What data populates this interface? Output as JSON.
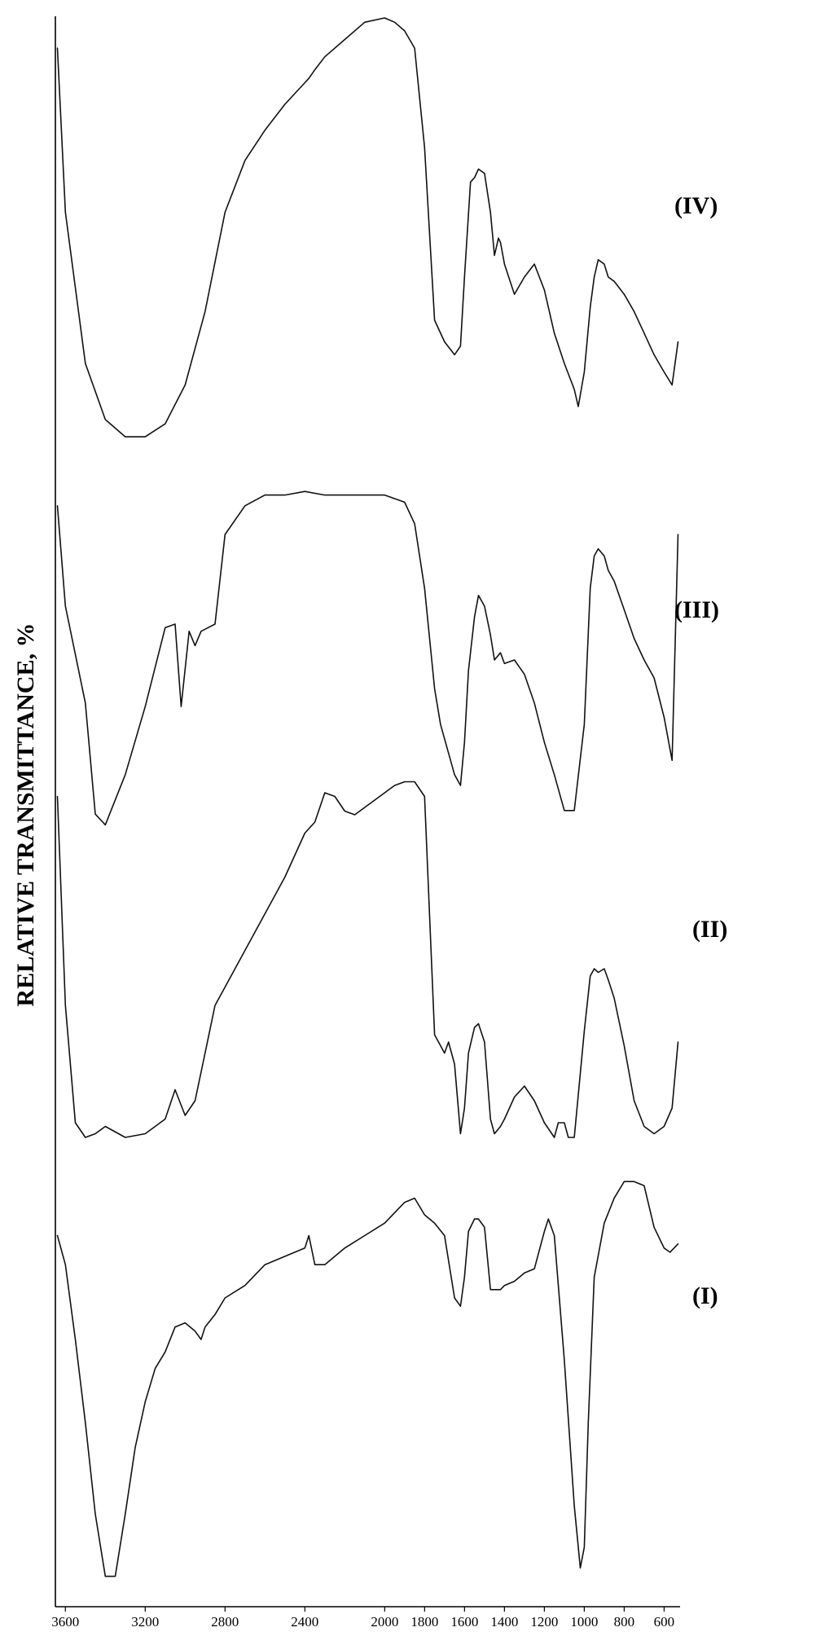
{
  "chart_data": {
    "type": "line",
    "title": "",
    "xlabel": "",
    "ylabel": "RELATIVE TRANSMITTANCE, %",
    "x_reversed": true,
    "xlim": [
      3650,
      520
    ],
    "x_ticks": [
      3600,
      3200,
      2800,
      2400,
      2000,
      1800,
      1600,
      1400,
      1200,
      1000,
      800,
      600
    ],
    "y_units": "relative transmittance (arbitrary, offset per series)",
    "legend": "inline labels at right",
    "grid": false,
    "series": [
      {
        "name": "(IV)",
        "x": [
          3640,
          3600,
          3500,
          3400,
          3300,
          3200,
          3100,
          3000,
          2900,
          2800,
          2700,
          2600,
          2500,
          2400,
          2380,
          2350,
          2300,
          2200,
          2100,
          2000,
          1950,
          1900,
          1850,
          1800,
          1750,
          1700,
          1650,
          1620,
          1600,
          1570,
          1550,
          1530,
          1500,
          1470,
          1450,
          1430,
          1420,
          1400,
          1350,
          1300,
          1250,
          1200,
          1150,
          1100,
          1050,
          1030,
          1000,
          970,
          950,
          930,
          900,
          880,
          850,
          800,
          750,
          700,
          650,
          600,
          560,
          530
        ],
        "y": [
          0.93,
          0.55,
          0.2,
          0.07,
          0.03,
          0.03,
          0.06,
          0.15,
          0.32,
          0.55,
          0.67,
          0.74,
          0.8,
          0.85,
          0.86,
          0.88,
          0.91,
          0.95,
          0.99,
          1.0,
          0.99,
          0.97,
          0.93,
          0.7,
          0.3,
          0.25,
          0.22,
          0.24,
          0.4,
          0.62,
          0.63,
          0.65,
          0.64,
          0.55,
          0.45,
          0.49,
          0.48,
          0.43,
          0.36,
          0.4,
          0.43,
          0.37,
          0.27,
          0.2,
          0.14,
          0.1,
          0.18,
          0.33,
          0.4,
          0.44,
          0.43,
          0.4,
          0.39,
          0.36,
          0.32,
          0.27,
          0.22,
          0.18,
          0.15,
          0.25
        ]
      },
      {
        "name": "(III)",
        "x": [
          3640,
          3600,
          3500,
          3450,
          3400,
          3300,
          3200,
          3100,
          3050,
          3020,
          2980,
          2950,
          2920,
          2850,
          2800,
          2700,
          2600,
          2500,
          2400,
          2300,
          2200,
          2100,
          2000,
          1900,
          1850,
          1800,
          1750,
          1720,
          1700,
          1670,
          1650,
          1620,
          1600,
          1580,
          1550,
          1530,
          1500,
          1470,
          1450,
          1420,
          1400,
          1350,
          1300,
          1250,
          1200,
          1150,
          1100,
          1050,
          1000,
          970,
          950,
          930,
          900,
          880,
          850,
          800,
          750,
          700,
          650,
          600,
          560,
          530
        ],
        "y": [
          0.93,
          0.65,
          0.38,
          0.07,
          0.04,
          0.18,
          0.37,
          0.59,
          0.6,
          0.37,
          0.58,
          0.54,
          0.58,
          0.6,
          0.85,
          0.93,
          0.96,
          0.96,
          0.97,
          0.96,
          0.96,
          0.96,
          0.96,
          0.94,
          0.88,
          0.7,
          0.42,
          0.32,
          0.28,
          0.22,
          0.18,
          0.15,
          0.27,
          0.47,
          0.62,
          0.68,
          0.65,
          0.57,
          0.5,
          0.52,
          0.49,
          0.5,
          0.46,
          0.38,
          0.27,
          0.18,
          0.08,
          0.08,
          0.32,
          0.7,
          0.79,
          0.81,
          0.79,
          0.75,
          0.72,
          0.64,
          0.56,
          0.5,
          0.45,
          0.34,
          0.22,
          0.85
        ]
      },
      {
        "name": "(II)",
        "x": [
          3640,
          3600,
          3550,
          3500,
          3450,
          3400,
          3300,
          3200,
          3100,
          3050,
          3000,
          2950,
          2900,
          2850,
          2800,
          2700,
          2600,
          2500,
          2400,
          2350,
          2300,
          2250,
          2200,
          2150,
          2100,
          2050,
          2000,
          1950,
          1900,
          1850,
          1800,
          1750,
          1700,
          1680,
          1650,
          1620,
          1600,
          1580,
          1550,
          1530,
          1500,
          1470,
          1450,
          1420,
          1400,
          1350,
          1300,
          1250,
          1200,
          1150,
          1130,
          1100,
          1080,
          1050,
          1000,
          970,
          950,
          930,
          900,
          880,
          850,
          800,
          750,
          700,
          650,
          600,
          560,
          530
        ],
        "y": [
          0.95,
          0.38,
          0.06,
          0.02,
          0.03,
          0.05,
          0.02,
          0.03,
          0.07,
          0.15,
          0.08,
          0.12,
          0.25,
          0.38,
          0.43,
          0.53,
          0.63,
          0.73,
          0.85,
          0.88,
          0.96,
          0.95,
          0.91,
          0.9,
          0.92,
          0.94,
          0.96,
          0.98,
          0.99,
          0.99,
          0.95,
          0.3,
          0.25,
          0.28,
          0.22,
          0.03,
          0.1,
          0.25,
          0.32,
          0.33,
          0.28,
          0.07,
          0.03,
          0.05,
          0.07,
          0.13,
          0.16,
          0.12,
          0.06,
          0.02,
          0.06,
          0.06,
          0.02,
          0.02,
          0.31,
          0.46,
          0.48,
          0.47,
          0.48,
          0.45,
          0.4,
          0.27,
          0.12,
          0.05,
          0.03,
          0.05,
          0.1,
          0.28
        ]
      },
      {
        "name": "(I)",
        "x": [
          3640,
          3600,
          3550,
          3500,
          3450,
          3400,
          3350,
          3300,
          3250,
          3200,
          3150,
          3100,
          3050,
          3000,
          2950,
          2920,
          2900,
          2850,
          2800,
          2700,
          2600,
          2500,
          2400,
          2380,
          2350,
          2300,
          2200,
          2100,
          2000,
          1900,
          1850,
          1800,
          1750,
          1700,
          1650,
          1620,
          1600,
          1580,
          1550,
          1530,
          1500,
          1470,
          1450,
          1420,
          1400,
          1350,
          1300,
          1250,
          1200,
          1180,
          1150,
          1100,
          1050,
          1020,
          1000,
          980,
          950,
          900,
          850,
          800,
          750,
          700,
          650,
          600,
          570,
          530
        ],
        "y": [
          0.85,
          0.78,
          0.6,
          0.4,
          0.18,
          0.03,
          0.03,
          0.18,
          0.34,
          0.45,
          0.53,
          0.57,
          0.63,
          0.64,
          0.62,
          0.6,
          0.63,
          0.66,
          0.7,
          0.73,
          0.78,
          0.8,
          0.82,
          0.85,
          0.78,
          0.78,
          0.82,
          0.85,
          0.88,
          0.93,
          0.94,
          0.9,
          0.88,
          0.85,
          0.7,
          0.68,
          0.75,
          0.86,
          0.89,
          0.89,
          0.87,
          0.72,
          0.72,
          0.72,
          0.73,
          0.74,
          0.76,
          0.77,
          0.86,
          0.89,
          0.85,
          0.55,
          0.2,
          0.05,
          0.1,
          0.4,
          0.75,
          0.88,
          0.94,
          0.98,
          0.98,
          0.97,
          0.87,
          0.82,
          0.81,
          0.83
        ]
      }
    ]
  }
}
